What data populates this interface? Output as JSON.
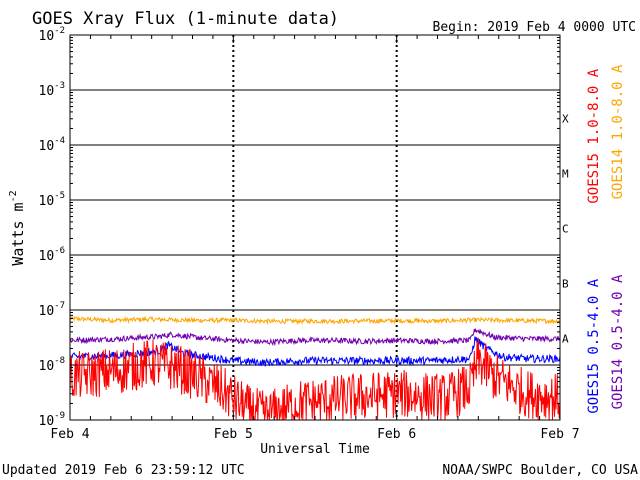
{
  "chart_data": {
    "type": "line",
    "title": "GOES Xray Flux (1-minute data)",
    "begin": "Begin:  2019 Feb 4 0000 UTC",
    "updated": "Updated 2019 Feb  6 23:59:12 UTC",
    "credit": "NOAA/SWPC Boulder, CO USA",
    "xlabel": "Universal Time",
    "ylabel": "Watts m",
    "ylabel_sup": "-2",
    "y_scale": "log",
    "ylim": [
      1e-09,
      0.01
    ],
    "xlim_days": [
      0,
      3
    ],
    "x_ticks": [
      {
        "day": 0,
        "label": "Feb 4"
      },
      {
        "day": 1,
        "label": "Feb 5"
      },
      {
        "day": 2,
        "label": "Feb 6"
      },
      {
        "day": 3,
        "label": "Feb 7"
      }
    ],
    "y_ticks": [
      {
        "exp": -9,
        "base": "10",
        "sup": "-9"
      },
      {
        "exp": -8,
        "base": "10",
        "sup": "-8"
      },
      {
        "exp": -7,
        "base": "10",
        "sup": "-7"
      },
      {
        "exp": -6,
        "base": "10",
        "sup": "-6"
      },
      {
        "exp": -5,
        "base": "10",
        "sup": "-5"
      },
      {
        "exp": -4,
        "base": "10",
        "sup": "-4"
      },
      {
        "exp": -3,
        "base": "10",
        "sup": "-3"
      },
      {
        "exp": -2,
        "base": "10",
        "sup": "-2"
      }
    ],
    "flare_classes": [
      {
        "label": "A",
        "exp": -8
      },
      {
        "label": "B",
        "exp": -7
      },
      {
        "label": "C",
        "exp": -6
      },
      {
        "label": "M",
        "exp": -5
      },
      {
        "label": "X",
        "exp": -4
      }
    ],
    "legend_upper": [
      {
        "name": "GOES15 1.0-8.0 A",
        "color": "#ff0000"
      },
      {
        "name": "GOES14 1.0-8.0 A",
        "color": "#ffa500"
      }
    ],
    "legend_lower": [
      {
        "name": "GOES15 0.5-4.0 A",
        "color": "#0000ff"
      },
      {
        "name": "GOES14 0.5-4.0 A",
        "color": "#7000b0"
      }
    ],
    "series": [
      {
        "name": "GOES14 1.0-8.0 A",
        "color": "#ffa500",
        "x": [
          0,
          0.25,
          0.5,
          0.75,
          1.0,
          1.25,
          1.5,
          1.75,
          2.0,
          2.25,
          2.5,
          2.75,
          3.0
        ],
        "y": [
          7e-08,
          6.5e-08,
          6.8e-08,
          6.5e-08,
          6.5e-08,
          6.2e-08,
          6.3e-08,
          6.3e-08,
          6.4e-08,
          6.3e-08,
          6.6e-08,
          6.4e-08,
          6.3e-08
        ]
      },
      {
        "name": "GOES14 0.5-4.0 A",
        "color": "#7000b0",
        "x": [
          0,
          0.3,
          0.55,
          0.62,
          0.8,
          1.0,
          1.2,
          1.4,
          1.6,
          1.8,
          2.0,
          2.2,
          2.45,
          2.48,
          2.6,
          2.8,
          3.0
        ],
        "y": [
          2.8e-08,
          3e-08,
          3.3e-08,
          3.6e-08,
          3.1e-08,
          2.8e-08,
          2.6e-08,
          2.8e-08,
          2.8e-08,
          2.7e-08,
          2.8e-08,
          2.7e-08,
          2.8e-08,
          4.4e-08,
          3.2e-08,
          3e-08,
          3e-08
        ]
      },
      {
        "name": "GOES15 0.5-4.0 A",
        "color": "#0000ff",
        "x": [
          0,
          0.3,
          0.55,
          0.6,
          0.7,
          1.0,
          1.2,
          1.4,
          1.6,
          1.8,
          2.0,
          2.2,
          2.45,
          2.48,
          2.55,
          2.65,
          2.8,
          3.0
        ],
        "y": [
          1.4e-08,
          1.5e-08,
          1.8e-08,
          2.3e-08,
          1.6e-08,
          1.2e-08,
          1.1e-08,
          1.2e-08,
          1.2e-08,
          1.2e-08,
          1.2e-08,
          1.2e-08,
          1.3e-08,
          3e-08,
          2e-08,
          1.4e-08,
          1.3e-08,
          1.3e-08
        ]
      },
      {
        "name": "GOES15 1.0-8.0 A",
        "color": "#ff0000",
        "x": [
          0,
          0.3,
          0.5,
          0.65,
          0.9,
          1.1,
          1.2,
          1.4,
          1.7,
          2.0,
          2.3,
          2.45,
          2.5,
          2.6,
          2.8,
          3.0
        ],
        "y": [
          6e-09,
          8e-09,
          1.1e-08,
          9e-09,
          4e-09,
          1.5e-09,
          1.2e-09,
          2e-09,
          2.5e-09,
          3e-09,
          2.5e-09,
          4e-09,
          1.2e-08,
          6e-09,
          3e-09,
          2.5e-09
        ]
      }
    ]
  }
}
